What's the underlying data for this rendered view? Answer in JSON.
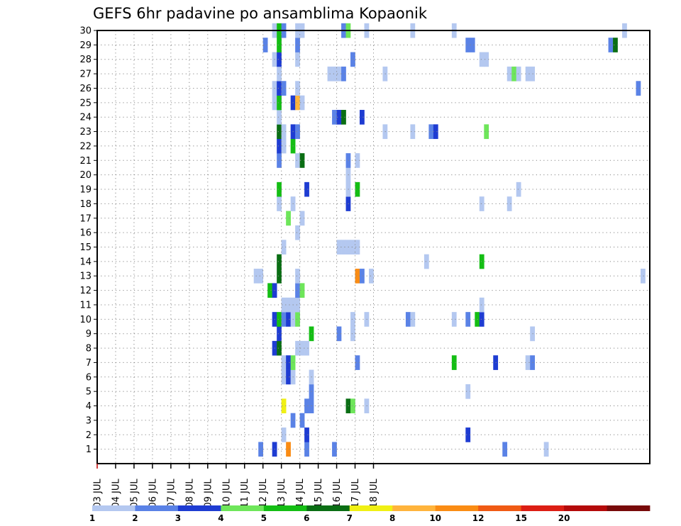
{
  "chart_data": {
    "type": "heatmap",
    "title": "GEFS 6hr padavine po ansamblima Kopaonik",
    "x_ticks": [
      "03 JUL",
      "04 JUL",
      "05 JUL",
      "06 JUL",
      "07 JUL",
      "08 JUL",
      "09 JUL",
      "10 JUL",
      "11 JUL",
      "12 JUL",
      "13 JUL",
      "14 JUL",
      "15 JUL",
      "16 JUL",
      "17 JUL",
      "18 JUL"
    ],
    "y_ticks": [
      "1",
      "2",
      "3",
      "4",
      "5",
      "6",
      "7",
      "8",
      "9",
      "10",
      "11",
      "12",
      "13",
      "14",
      "15",
      "16",
      "17",
      "18",
      "19",
      "20",
      "21",
      "22",
      "23",
      "24",
      "25",
      "26",
      "27",
      "28",
      "29",
      "30"
    ],
    "x_step_hours": 6,
    "grid": true,
    "colorbar": {
      "labels": [
        "1",
        "2",
        "3",
        "4",
        "5",
        "6",
        "7",
        "8",
        "10",
        "12",
        "15",
        "20"
      ],
      "colors": [
        "#b4c8f0",
        "#5a82e6",
        "#1e3cd2",
        "#6ee65a",
        "#14be14",
        "#0a6e14",
        "#f0f014",
        "#ffb43c",
        "#fa8c14",
        "#f05a14",
        "#dc1e14",
        "#b40a0a",
        "#780a0a"
      ]
    },
    "cells": [
      [
        1,
        35,
        1
      ],
      [
        1,
        38,
        2
      ],
      [
        1,
        41,
        8
      ],
      [
        1,
        45,
        1
      ],
      [
        1,
        51,
        1
      ],
      [
        1,
        88,
        1
      ],
      [
        1,
        97,
        0
      ],
      [
        2,
        40,
        0
      ],
      [
        2,
        45,
        2
      ],
      [
        2,
        80,
        2
      ],
      [
        3,
        42,
        1
      ],
      [
        3,
        44,
        1
      ],
      [
        4,
        40,
        6
      ],
      [
        4,
        45,
        1
      ],
      [
        4,
        46,
        1
      ],
      [
        4,
        54,
        5
      ],
      [
        4,
        55,
        3
      ],
      [
        4,
        58,
        0
      ],
      [
        5,
        46,
        1
      ],
      [
        5,
        80,
        0
      ],
      [
        6,
        40,
        0
      ],
      [
        6,
        41,
        2
      ],
      [
        6,
        42,
        0
      ],
      [
        6,
        46,
        0
      ],
      [
        7,
        40,
        0
      ],
      [
        7,
        41,
        2
      ],
      [
        7,
        42,
        3
      ],
      [
        7,
        56,
        1
      ],
      [
        7,
        77,
        4
      ],
      [
        7,
        86,
        2
      ],
      [
        7,
        93,
        0
      ],
      [
        7,
        94,
        1
      ],
      [
        8,
        38,
        2
      ],
      [
        8,
        39,
        5
      ],
      [
        8,
        43,
        0
      ],
      [
        8,
        44,
        0
      ],
      [
        8,
        45,
        0
      ],
      [
        9,
        39,
        2
      ],
      [
        9,
        46,
        4
      ],
      [
        9,
        52,
        1
      ],
      [
        9,
        55,
        0
      ],
      [
        9,
        94,
        0
      ],
      [
        10,
        38,
        2
      ],
      [
        10,
        39,
        4
      ],
      [
        10,
        40,
        1
      ],
      [
        10,
        41,
        2
      ],
      [
        10,
        42,
        0
      ],
      [
        10,
        43,
        3
      ],
      [
        10,
        55,
        0
      ],
      [
        10,
        58,
        0
      ],
      [
        10,
        67,
        1
      ],
      [
        10,
        68,
        0
      ],
      [
        10,
        77,
        0
      ],
      [
        10,
        80,
        1
      ],
      [
        10,
        82,
        4
      ],
      [
        10,
        83,
        2
      ],
      [
        11,
        40,
        0
      ],
      [
        11,
        41,
        0
      ],
      [
        11,
        42,
        0
      ],
      [
        11,
        43,
        0
      ],
      [
        11,
        83,
        0
      ],
      [
        12,
        37,
        4
      ],
      [
        12,
        38,
        2
      ],
      [
        12,
        43,
        1
      ],
      [
        12,
        44,
        3
      ],
      [
        13,
        34,
        0
      ],
      [
        13,
        35,
        0
      ],
      [
        13,
        39,
        5
      ],
      [
        13,
        43,
        0
      ],
      [
        13,
        56,
        8
      ],
      [
        13,
        57,
        1
      ],
      [
        13,
        59,
        0
      ],
      [
        13,
        118,
        0
      ],
      [
        14,
        39,
        5
      ],
      [
        14,
        71,
        0
      ],
      [
        14,
        83,
        4
      ],
      [
        15,
        40,
        0
      ],
      [
        15,
        52,
        0
      ],
      [
        15,
        53,
        0
      ],
      [
        15,
        54,
        0
      ],
      [
        15,
        55,
        0
      ],
      [
        15,
        56,
        0
      ],
      [
        16,
        43,
        0
      ],
      [
        17,
        41,
        3
      ],
      [
        17,
        44,
        0
      ],
      [
        18,
        39,
        0
      ],
      [
        18,
        42,
        0
      ],
      [
        18,
        54,
        2
      ],
      [
        18,
        83,
        0
      ],
      [
        18,
        89,
        0
      ],
      [
        19,
        39,
        4
      ],
      [
        19,
        45,
        2
      ],
      [
        19,
        54,
        0
      ],
      [
        19,
        56,
        4
      ],
      [
        19,
        91,
        0
      ],
      [
        20,
        54,
        0
      ],
      [
        21,
        39,
        1
      ],
      [
        21,
        43,
        0
      ],
      [
        21,
        44,
        5
      ],
      [
        21,
        54,
        1
      ],
      [
        21,
        56,
        0
      ],
      [
        22,
        39,
        2
      ],
      [
        22,
        40,
        0
      ],
      [
        22,
        42,
        4
      ],
      [
        23,
        39,
        5
      ],
      [
        23,
        40,
        0
      ],
      [
        23,
        42,
        2
      ],
      [
        23,
        43,
        1
      ],
      [
        23,
        62,
        0
      ],
      [
        23,
        68,
        0
      ],
      [
        23,
        72,
        1
      ],
      [
        23,
        73,
        2
      ],
      [
        23,
        84,
        3
      ],
      [
        24,
        39,
        0
      ],
      [
        24,
        51,
        1
      ],
      [
        24,
        52,
        2
      ],
      [
        24,
        53,
        5
      ],
      [
        24,
        57,
        2
      ],
      [
        25,
        38,
        0
      ],
      [
        25,
        39,
        4
      ],
      [
        25,
        42,
        2
      ],
      [
        25,
        43,
        7
      ],
      [
        25,
        44,
        0
      ],
      [
        26,
        38,
        0
      ],
      [
        26,
        39,
        2
      ],
      [
        26,
        40,
        1
      ],
      [
        26,
        43,
        0
      ],
      [
        26,
        117,
        1
      ],
      [
        27,
        39,
        0
      ],
      [
        27,
        50,
        0
      ],
      [
        27,
        51,
        0
      ],
      [
        27,
        52,
        0
      ],
      [
        27,
        53,
        1
      ],
      [
        27,
        62,
        0
      ],
      [
        27,
        89,
        0
      ],
      [
        27,
        90,
        3
      ],
      [
        27,
        91,
        0
      ],
      [
        27,
        93,
        0
      ],
      [
        27,
        94,
        0
      ],
      [
        28,
        38,
        0
      ],
      [
        28,
        39,
        2
      ],
      [
        28,
        43,
        0
      ],
      [
        28,
        55,
        1
      ],
      [
        28,
        83,
        0
      ],
      [
        28,
        84,
        0
      ],
      [
        29,
        36,
        1
      ],
      [
        29,
        39,
        4
      ],
      [
        29,
        43,
        1
      ],
      [
        29,
        80,
        1
      ],
      [
        29,
        81,
        1
      ],
      [
        29,
        111,
        1
      ],
      [
        29,
        112,
        5
      ],
      [
        30,
        38,
        0
      ],
      [
        30,
        39,
        4
      ],
      [
        30,
        40,
        1
      ],
      [
        30,
        43,
        0
      ],
      [
        30,
        44,
        0
      ],
      [
        30,
        53,
        1
      ],
      [
        30,
        54,
        3
      ],
      [
        30,
        58,
        0
      ],
      [
        30,
        68,
        0
      ],
      [
        30,
        77,
        0
      ],
      [
        30,
        114,
        0
      ]
    ]
  }
}
